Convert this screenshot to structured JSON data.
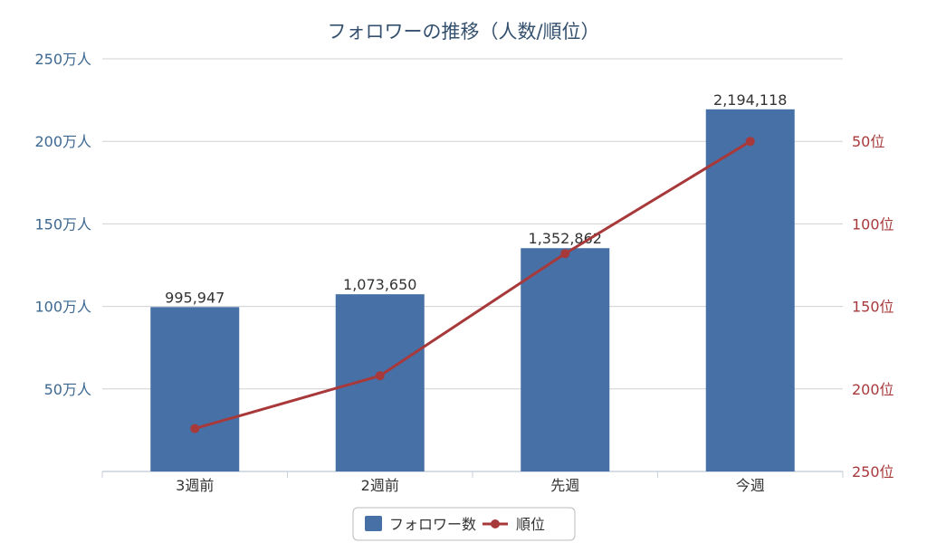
{
  "chart_data": {
    "type": "bar",
    "title": "フォロワーの推移（人数/順位）",
    "categories": [
      "3週前",
      "2週前",
      "先週",
      "今週"
    ],
    "series": [
      {
        "name": "フォロワー数",
        "type": "bar",
        "axis": "left",
        "values": [
          995947,
          1073650,
          1352862,
          2194118
        ],
        "data_labels": [
          "995,947",
          "1,073,650",
          "1,352,862",
          "2,194,118"
        ],
        "color": "#4670a6"
      },
      {
        "name": "順位",
        "type": "line",
        "axis": "right",
        "values": [
          224,
          192,
          118,
          50
        ],
        "color": "#a8393b"
      }
    ],
    "y_left": {
      "min": 0,
      "max": 2500000,
      "ticks": [
        500000,
        1000000,
        1500000,
        2000000,
        2500000
      ],
      "tick_labels": [
        "50万人",
        "100万人",
        "150万人",
        "200万人",
        "250万人"
      ]
    },
    "y_right": {
      "min": 0,
      "max": 250,
      "reversed": true,
      "ticks": [
        50,
        100,
        150,
        200,
        250
      ],
      "tick_labels": [
        "50位",
        "100位",
        "150位",
        "200位",
        "250位"
      ]
    },
    "grid": true,
    "legend": "bottom-center"
  }
}
